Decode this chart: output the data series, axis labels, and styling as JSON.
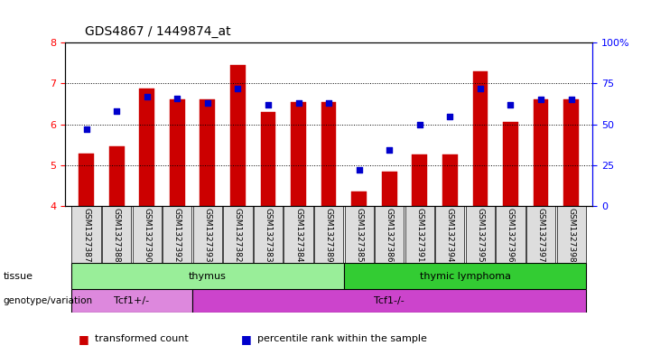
{
  "title": "GDS4867 / 1449874_at",
  "samples": [
    "GSM1327387",
    "GSM1327388",
    "GSM1327390",
    "GSM1327392",
    "GSM1327393",
    "GSM1327382",
    "GSM1327383",
    "GSM1327384",
    "GSM1327389",
    "GSM1327385",
    "GSM1327386",
    "GSM1327391",
    "GSM1327394",
    "GSM1327395",
    "GSM1327396",
    "GSM1327397",
    "GSM1327398"
  ],
  "bar_values": [
    5.28,
    5.45,
    6.88,
    6.62,
    6.6,
    7.45,
    6.3,
    6.55,
    6.55,
    4.35,
    4.85,
    5.25,
    5.25,
    7.3,
    6.05,
    6.6,
    6.6
  ],
  "dot_values": [
    47,
    58,
    67,
    66,
    63,
    72,
    62,
    63,
    63,
    22,
    34,
    50,
    55,
    72,
    62,
    65,
    65
  ],
  "ylim_left": [
    4,
    8
  ],
  "ylim_right": [
    0,
    100
  ],
  "yticks_left": [
    4,
    5,
    6,
    7,
    8
  ],
  "yticks_right": [
    0,
    25,
    50,
    75,
    100
  ],
  "bar_color": "#cc0000",
  "dot_color": "#0000cc",
  "bar_bottom": 4,
  "tissue_groups": [
    {
      "label": "thymus",
      "start": 0,
      "end": 9,
      "color": "#99ee99"
    },
    {
      "label": "thymic lymphoma",
      "start": 9,
      "end": 17,
      "color": "#33cc33"
    }
  ],
  "genotype_groups": [
    {
      "label": "Tcf1+/-",
      "start": 0,
      "end": 4,
      "color": "#dd88dd"
    },
    {
      "label": "Tcf1-/-",
      "start": 4,
      "end": 17,
      "color": "#cc44cc"
    }
  ],
  "tissue_row_label": "tissue",
  "genotype_row_label": "genotype/variation",
  "legend_items": [
    {
      "color": "#cc0000",
      "label": "transformed count"
    },
    {
      "color": "#0000cc",
      "label": "percentile rank within the sample"
    }
  ],
  "background_color": "#ffffff",
  "plot_bg_color": "#ffffff",
  "grid_color": "#000000",
  "tick_label_bg": "#dddddd"
}
